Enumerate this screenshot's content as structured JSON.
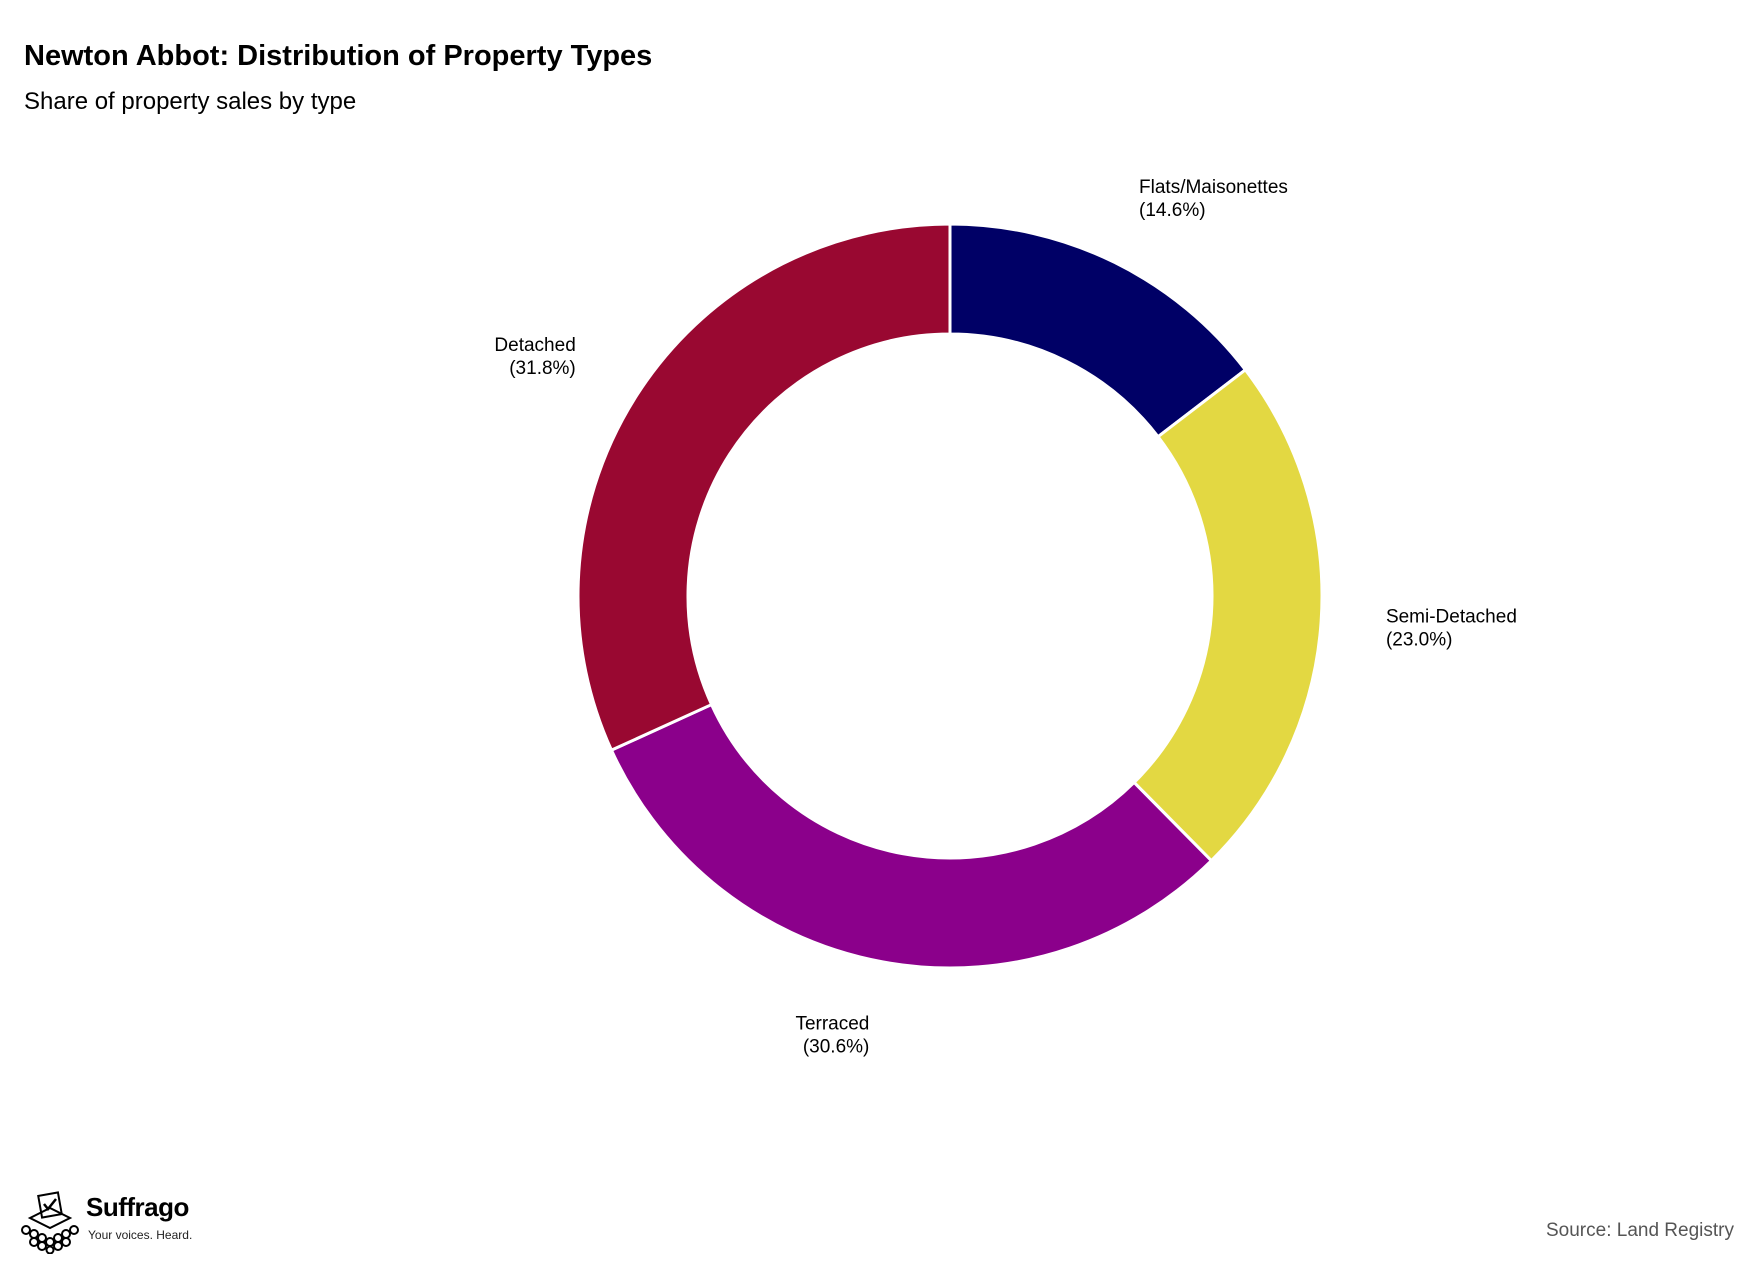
{
  "header": {
    "title": "Newton Abbot: Distribution of Property Types",
    "subtitle": "Share of property sales by type"
  },
  "chart_data": {
    "type": "pie",
    "donut": true,
    "title": "Newton Abbot: Distribution of Property Types",
    "subtitle": "Share of property sales by type",
    "categories": [
      "Flats/Maisonettes",
      "Semi-Detached",
      "Terraced",
      "Detached"
    ],
    "values": [
      14.6,
      23.0,
      30.6,
      31.8
    ],
    "value_labels": [
      "(14.6%)",
      "(23.0%)",
      "(30.6%)",
      "(31.8%)"
    ],
    "colors": [
      "#000066",
      "#e3d842",
      "#8b008b",
      "#990831"
    ],
    "legend": "none"
  },
  "footer": {
    "source": "Source: Land Registry",
    "logo_name": "Suffrago",
    "logo_tagline": "Your voices. Heard."
  }
}
